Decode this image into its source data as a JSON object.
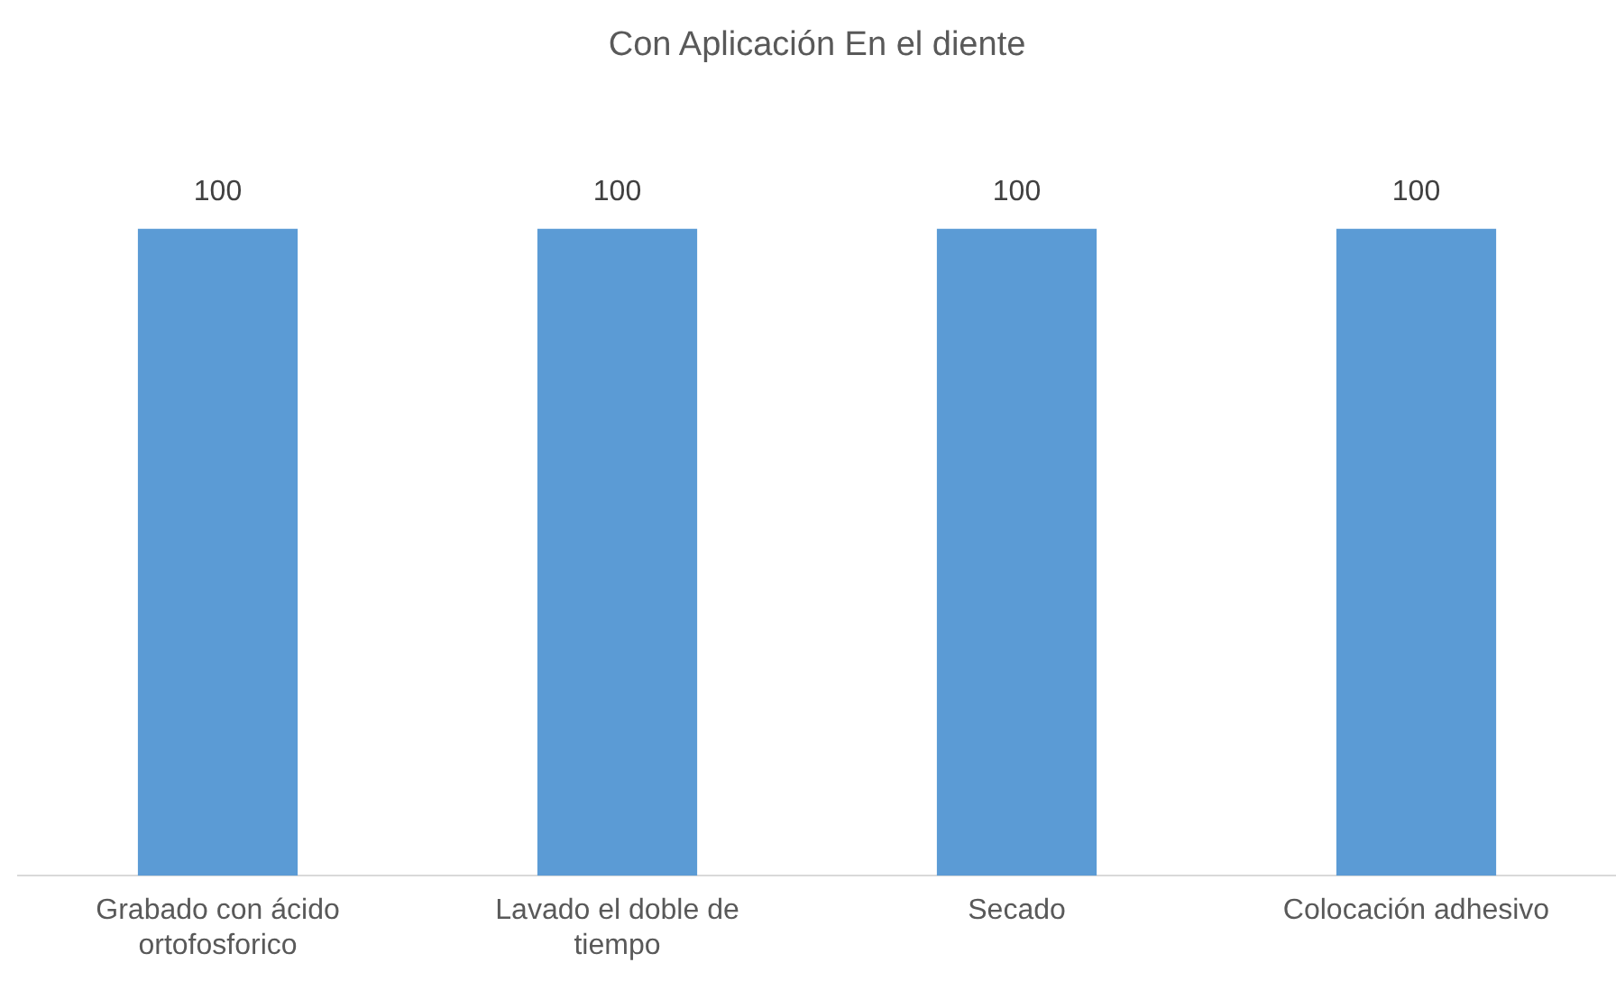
{
  "chart_data": {
    "type": "bar",
    "title": "Con Aplicación En el diente",
    "categories": [
      "Grabado con ácido ortofosforico",
      "Lavado el doble de tiempo",
      "Secado",
      "Colocación adhesivo"
    ],
    "values": [
      100,
      100,
      100,
      100
    ],
    "color": "#5b9bd5",
    "data_labels": true,
    "grid": false,
    "legend": false,
    "tick_labels": "x"
  }
}
